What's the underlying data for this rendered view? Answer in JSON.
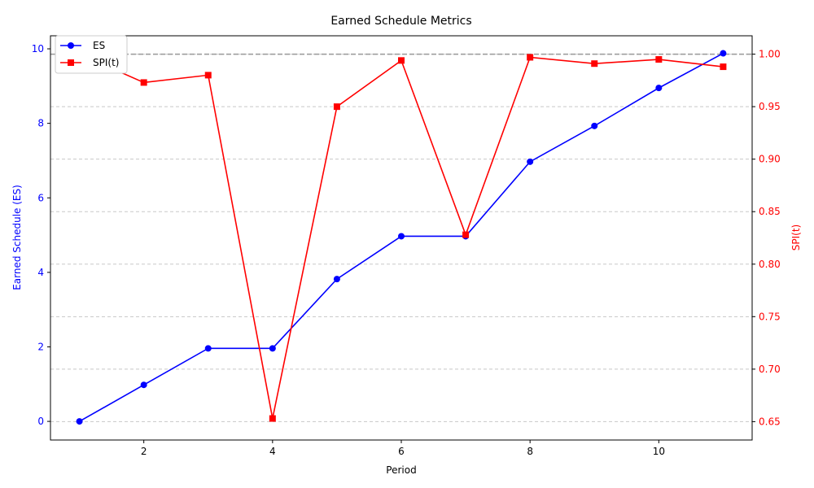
{
  "chart_data": {
    "type": "line",
    "title": "Earned Schedule Metrics",
    "xlabel": "Period",
    "x": [
      1,
      2,
      3,
      4,
      5,
      6,
      7,
      8,
      9,
      10,
      11
    ],
    "xlim": [
      0.55,
      11.45
    ],
    "xticks": [
      2,
      4,
      6,
      8,
      10
    ],
    "left_axis": {
      "label": "Earned Schedule (ES)",
      "color": "#0000ff",
      "ylim": [
        -0.5,
        10.35
      ],
      "ticks": [
        0,
        2,
        4,
        6,
        8,
        10
      ]
    },
    "right_axis": {
      "label": "SPI(t)",
      "color": "#ff0000",
      "ylim": [
        0.6325,
        1.0175
      ],
      "ticks": [
        "0.65",
        "0.70",
        "0.75",
        "0.80",
        "0.85",
        "0.90",
        "0.95",
        "1.00"
      ]
    },
    "series": [
      {
        "name": "ES",
        "axis": "left",
        "color": "#0000ff",
        "marker": "circle",
        "values": [
          0.0,
          0.98,
          1.96,
          1.96,
          3.82,
          4.97,
          4.97,
          6.97,
          7.93,
          8.95,
          9.88
        ]
      },
      {
        "name": "SPI(t)",
        "axis": "right",
        "color": "#ff0000",
        "marker": "square",
        "values": [
          1.0,
          0.973,
          0.98,
          0.653,
          0.95,
          0.994,
          0.828,
          0.997,
          0.991,
          0.995,
          0.988
        ]
      }
    ],
    "reference_line": {
      "axis": "right",
      "value": 1.0,
      "style": "dashed",
      "color": "#999999"
    },
    "grid": {
      "axis": "y",
      "on": true,
      "style": "dashed"
    },
    "legend": {
      "position": "top-left"
    }
  }
}
